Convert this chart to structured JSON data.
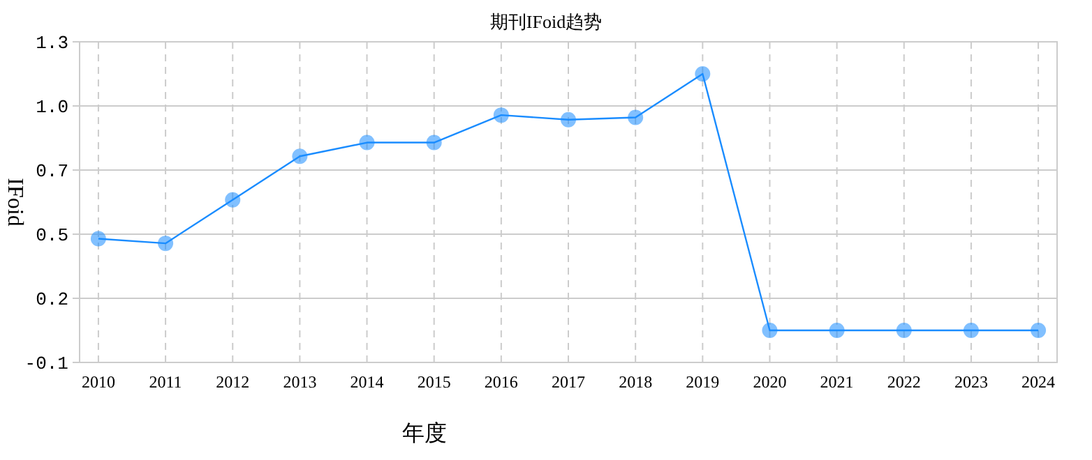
{
  "chart_data": {
    "type": "line",
    "title": "期刊IFoid趋势",
    "xlabel": "年度",
    "ylabel": "IFoid",
    "categories": [
      "2010",
      "2011",
      "2012",
      "2013",
      "2014",
      "2015",
      "2016",
      "2017",
      "2018",
      "2019",
      "2020",
      "2021",
      "2022",
      "2023",
      "2024"
    ],
    "series": [
      {
        "color": "#1a8cff",
        "values": [
          0.44,
          0.42,
          0.61,
          0.8,
          0.86,
          0.86,
          0.98,
          0.96,
          0.97,
          1.16,
          0.04,
          0.04,
          0.04,
          0.04,
          0.04
        ]
      }
    ],
    "ylim": [
      -0.1,
      1.3
    ],
    "yticks": [
      -0.1,
      {
        "value": 0.18,
        "label": "0.2"
      },
      {
        "value": 0.46,
        "label": "0.5"
      },
      {
        "value": 0.74,
        "label": "0.7"
      },
      {
        "value": 1.02,
        "label": "1.0"
      },
      1.3
    ],
    "grid": true,
    "marker": "circle",
    "line_style": "solid"
  }
}
